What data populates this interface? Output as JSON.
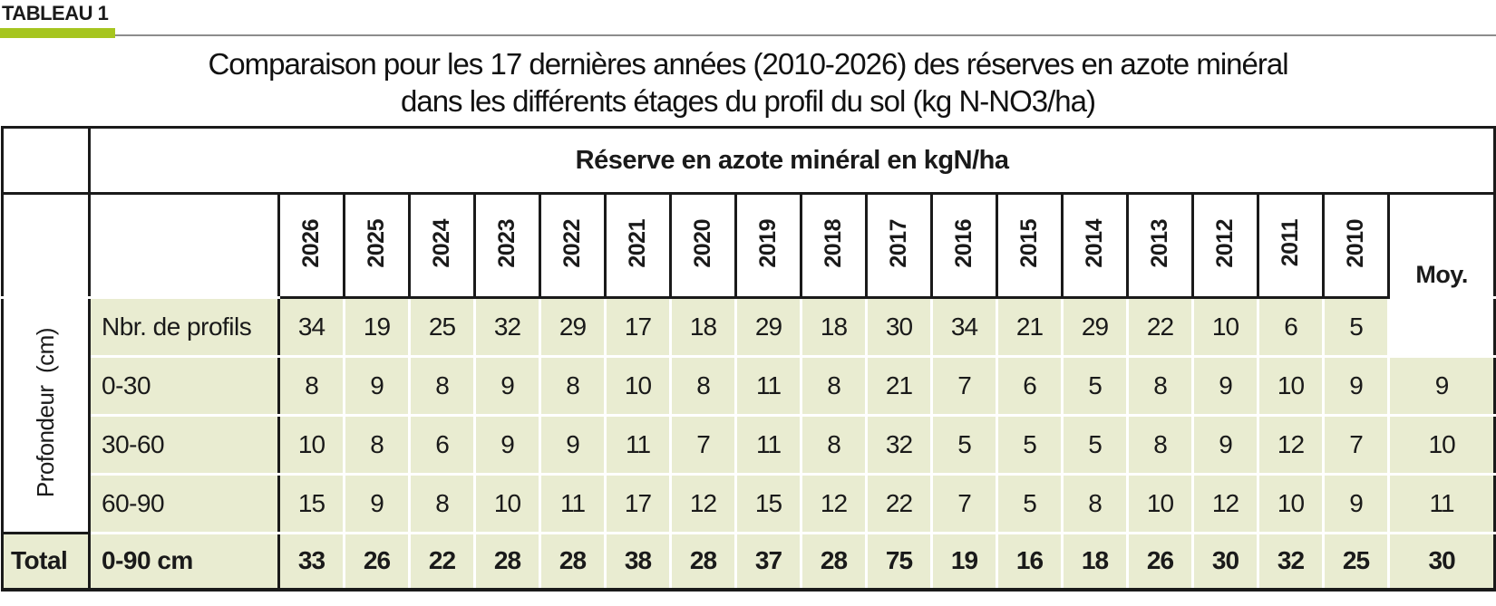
{
  "page": {
    "tag_label": "TABLEAU 1",
    "title_line1": "Comparaison pour les 17 dernières années (2010-2026) des réserves en azote minéral",
    "title_line2": "dans les différents étages du profil du sol (kg N-NO3/ha)"
  },
  "table": {
    "main_header": "Réserve en azote minéral en kgN/ha",
    "row_group_label": "Profondeur  (cm)",
    "avg_header": "Moy.",
    "years": [
      "2026",
      "2025",
      "2024",
      "2023",
      "2022",
      "2021",
      "2020",
      "2019",
      "2018",
      "2017",
      "2016",
      "2015",
      "2014",
      "2013",
      "2012",
      "2011",
      "2010"
    ],
    "rows": [
      {
        "label": "Nbr. de profils",
        "values": [
          "34",
          "19",
          "25",
          "32",
          "29",
          "17",
          "18",
          "29",
          "18",
          "30",
          "34",
          "21",
          "29",
          "22",
          "10",
          "6",
          "5"
        ],
        "avg": ""
      },
      {
        "label": "0-30",
        "values": [
          "8",
          "9",
          "8",
          "9",
          "8",
          "10",
          "8",
          "11",
          "8",
          "21",
          "7",
          "6",
          "5",
          "8",
          "9",
          "10",
          "9"
        ],
        "avg": "9"
      },
      {
        "label": "30-60",
        "values": [
          "10",
          "8",
          "6",
          "9",
          "9",
          "11",
          "7",
          "11",
          "8",
          "32",
          "5",
          "5",
          "5",
          "8",
          "9",
          "12",
          "7"
        ],
        "avg": "10"
      },
      {
        "label": "60-90",
        "values": [
          "15",
          "9",
          "8",
          "10",
          "11",
          "17",
          "12",
          "15",
          "12",
          "22",
          "7",
          "5",
          "8",
          "10",
          "12",
          "10",
          "9"
        ],
        "avg": "11"
      }
    ],
    "total": {
      "group_label": "Total",
      "label": "0-90 cm",
      "values": [
        "33",
        "26",
        "22",
        "28",
        "28",
        "38",
        "28",
        "37",
        "28",
        "75",
        "19",
        "16",
        "18",
        "26",
        "30",
        "32",
        "25"
      ],
      "avg": "30"
    }
  },
  "colors": {
    "accent_green": "#a6c51f",
    "cell_green": "#e9ecd1",
    "border_black": "#1a1a1a",
    "rule_gray": "#8c8c8c"
  }
}
